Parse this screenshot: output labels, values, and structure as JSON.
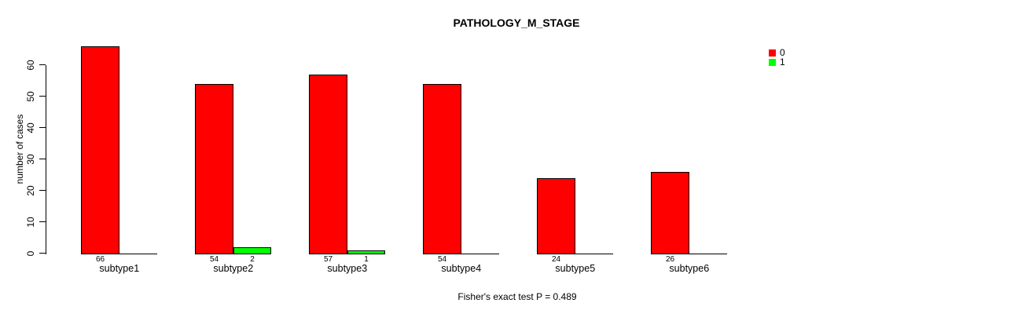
{
  "title": "PATHOLOGY_M_STAGE",
  "footnote": "Fisher's exact test P = 0.489",
  "ylabel": "number of cases",
  "legend": {
    "items": [
      {
        "label": "0",
        "color": "#ff0000"
      },
      {
        "label": "1",
        "color": "#00ff00"
      }
    ]
  },
  "chart_data": {
    "type": "bar",
    "title": "PATHOLOGY_M_STAGE",
    "xlabel": "",
    "ylabel": "number of cases",
    "categories": [
      "subtype1",
      "subtype2",
      "subtype3",
      "subtype4",
      "subtype5",
      "subtype6"
    ],
    "series": [
      {
        "name": "0",
        "color": "#ff0000",
        "values": [
          66,
          54,
          57,
          54,
          24,
          26
        ]
      },
      {
        "name": "1",
        "color": "#00ff00",
        "values": [
          0,
          2,
          1,
          0,
          0,
          0
        ]
      }
    ],
    "bar_value_labels": [
      [
        "66",
        "54",
        "57",
        "54",
        "24",
        "26"
      ],
      [
        "",
        "2",
        "1",
        "",
        "",
        ""
      ]
    ],
    "yticks": [
      0,
      10,
      20,
      30,
      40,
      50,
      60
    ],
    "ylim": [
      0,
      66
    ],
    "grid": false,
    "legend_position": "top-right",
    "annotation": "Fisher's exact test P = 0.489"
  }
}
